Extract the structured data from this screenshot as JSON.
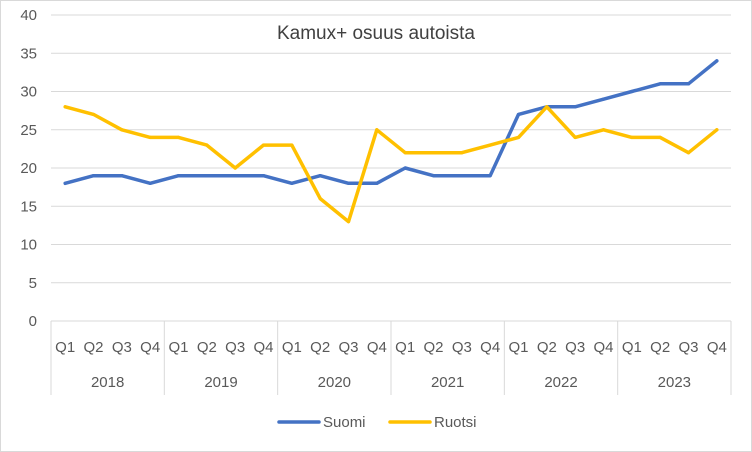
{
  "chart_data": {
    "type": "line",
    "title": "Kamux+ osuus autoista",
    "xlabel": "",
    "ylabel": "",
    "ylim": [
      0,
      40
    ],
    "yticks": [
      0,
      5,
      10,
      15,
      20,
      25,
      30,
      35,
      40
    ],
    "grid": true,
    "legend_position": "bottom",
    "quarters": [
      "Q1",
      "Q2",
      "Q3",
      "Q4"
    ],
    "years": [
      "2018",
      "2019",
      "2020",
      "2021",
      "2022",
      "2023"
    ],
    "categories": [
      "2018 Q1",
      "2018 Q2",
      "2018 Q3",
      "2018 Q4",
      "2019 Q1",
      "2019 Q2",
      "2019 Q3",
      "2019 Q4",
      "2020 Q1",
      "2020 Q2",
      "2020 Q3",
      "2020 Q4",
      "2021 Q1",
      "2021 Q2",
      "2021 Q3",
      "2021 Q4",
      "2022 Q1",
      "2022 Q2",
      "2022 Q3",
      "2022 Q4",
      "2023 Q1",
      "2023 Q2",
      "2023 Q3",
      "2023 Q4"
    ],
    "series": [
      {
        "name": "Suomi",
        "color": "#4472C4",
        "values": [
          18,
          19,
          19,
          18,
          19,
          19,
          19,
          19,
          18,
          19,
          18,
          18,
          20,
          19,
          19,
          19,
          27,
          28,
          28,
          29,
          30,
          31,
          31,
          34
        ]
      },
      {
        "name": "Ruotsi",
        "color": "#FFC000",
        "values": [
          28,
          27,
          25,
          24,
          24,
          23,
          20,
          23,
          23,
          16,
          13,
          25,
          22,
          22,
          22,
          23,
          24,
          28,
          24,
          25,
          24,
          24,
          22,
          25
        ]
      }
    ]
  }
}
